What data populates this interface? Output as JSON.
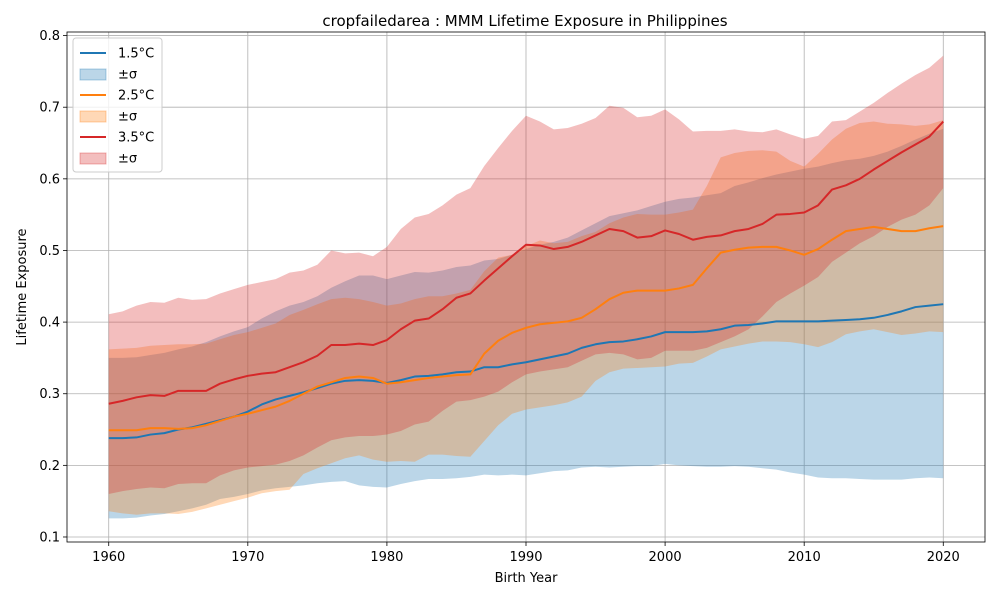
{
  "chart_data": {
    "type": "line",
    "title": "cropfailedarea : MMM Lifetime Exposure in Philippines",
    "xlabel": "Birth Year",
    "ylabel": "Lifetime Exposure",
    "xlim": [
      1957,
      2023
    ],
    "ylim": [
      0.093,
      0.805
    ],
    "xticks": [
      1960,
      1970,
      1980,
      1990,
      2000,
      2010,
      2020
    ],
    "xtick_labels": [
      "1960",
      "1970",
      "1980",
      "1990",
      "2000",
      "2010",
      "2020"
    ],
    "yticks": [
      0.1,
      0.2,
      0.3,
      0.4,
      0.5,
      0.6,
      0.7,
      0.8
    ],
    "ytick_labels": [
      "0.1",
      "0.2",
      "0.3",
      "0.4",
      "0.5",
      "0.6",
      "0.7",
      "0.8"
    ],
    "grid": true,
    "legend_position": "top-left",
    "x": [
      1960,
      1961,
      1962,
      1963,
      1964,
      1965,
      1966,
      1967,
      1968,
      1969,
      1970,
      1971,
      1972,
      1973,
      1974,
      1975,
      1976,
      1977,
      1978,
      1979,
      1980,
      1981,
      1982,
      1983,
      1984,
      1985,
      1986,
      1987,
      1988,
      1989,
      1990,
      1991,
      1992,
      1993,
      1994,
      1995,
      1996,
      1997,
      1998,
      1999,
      2000,
      2001,
      2002,
      2003,
      2004,
      2005,
      2006,
      2007,
      2008,
      2009,
      2010,
      2011,
      2012,
      2013,
      2014,
      2015,
      2016,
      2017,
      2018,
      2019,
      2020
    ],
    "series": [
      {
        "name": "1.5°C",
        "band_label": "±σ",
        "color": "#1f77b4",
        "band_color": "#1f77b4",
        "band_opacity": 0.3,
        "values": [
          0.238,
          0.238,
          0.239,
          0.243,
          0.245,
          0.25,
          0.253,
          0.258,
          0.263,
          0.268,
          0.275,
          0.285,
          0.292,
          0.297,
          0.302,
          0.308,
          0.314,
          0.318,
          0.319,
          0.318,
          0.315,
          0.319,
          0.324,
          0.325,
          0.327,
          0.33,
          0.331,
          0.337,
          0.337,
          0.341,
          0.344,
          0.348,
          0.352,
          0.356,
          0.364,
          0.369,
          0.372,
          0.373,
          0.376,
          0.38,
          0.386,
          0.386,
          0.386,
          0.387,
          0.39,
          0.395,
          0.396,
          0.398,
          0.401,
          0.401,
          0.401,
          0.401,
          0.402,
          0.403,
          0.404,
          0.406,
          0.41,
          0.415,
          0.421,
          0.423,
          0.425
        ],
        "lower": [
          0.126,
          0.126,
          0.127,
          0.13,
          0.132,
          0.136,
          0.14,
          0.145,
          0.153,
          0.156,
          0.16,
          0.165,
          0.168,
          0.17,
          0.172,
          0.175,
          0.177,
          0.178,
          0.172,
          0.17,
          0.169,
          0.174,
          0.178,
          0.181,
          0.181,
          0.182,
          0.184,
          0.187,
          0.186,
          0.187,
          0.186,
          0.189,
          0.192,
          0.193,
          0.197,
          0.198,
          0.197,
          0.198,
          0.199,
          0.199,
          0.202,
          0.2,
          0.199,
          0.198,
          0.198,
          0.199,
          0.198,
          0.196,
          0.194,
          0.19,
          0.187,
          0.183,
          0.182,
          0.182,
          0.181,
          0.18,
          0.18,
          0.18,
          0.182,
          0.183,
          0.182
        ],
        "upper": [
          0.35,
          0.35,
          0.351,
          0.354,
          0.357,
          0.362,
          0.366,
          0.372,
          0.38,
          0.387,
          0.393,
          0.405,
          0.415,
          0.423,
          0.428,
          0.436,
          0.448,
          0.457,
          0.465,
          0.465,
          0.46,
          0.465,
          0.47,
          0.469,
          0.472,
          0.477,
          0.479,
          0.486,
          0.488,
          0.494,
          0.502,
          0.508,
          0.512,
          0.518,
          0.528,
          0.538,
          0.548,
          0.552,
          0.556,
          0.562,
          0.568,
          0.572,
          0.574,
          0.577,
          0.58,
          0.59,
          0.595,
          0.601,
          0.606,
          0.61,
          0.614,
          0.617,
          0.622,
          0.626,
          0.628,
          0.632,
          0.638,
          0.646,
          0.655,
          0.663,
          0.67
        ]
      },
      {
        "name": "2.5°C",
        "band_label": "±σ",
        "color": "#ff7f0e",
        "band_color": "#ff7f0e",
        "band_opacity": 0.3,
        "values": [
          0.249,
          0.249,
          0.249,
          0.252,
          0.252,
          0.251,
          0.252,
          0.256,
          0.262,
          0.268,
          0.272,
          0.277,
          0.282,
          0.29,
          0.3,
          0.31,
          0.316,
          0.322,
          0.324,
          0.322,
          0.314,
          0.316,
          0.319,
          0.322,
          0.324,
          0.326,
          0.327,
          0.356,
          0.374,
          0.385,
          0.392,
          0.397,
          0.399,
          0.401,
          0.406,
          0.418,
          0.432,
          0.441,
          0.444,
          0.444,
          0.444,
          0.447,
          0.452,
          0.475,
          0.497,
          0.501,
          0.504,
          0.505,
          0.505,
          0.5,
          0.494,
          0.502,
          0.515,
          0.527,
          0.53,
          0.533,
          0.53,
          0.527,
          0.527,
          0.531,
          0.534
        ],
        "lower": [
          0.136,
          0.133,
          0.131,
          0.133,
          0.133,
          0.132,
          0.135,
          0.14,
          0.145,
          0.15,
          0.155,
          0.161,
          0.164,
          0.166,
          0.188,
          0.196,
          0.203,
          0.21,
          0.214,
          0.208,
          0.205,
          0.206,
          0.205,
          0.215,
          0.215,
          0.213,
          0.212,
          0.234,
          0.256,
          0.272,
          0.278,
          0.281,
          0.284,
          0.288,
          0.296,
          0.318,
          0.33,
          0.335,
          0.336,
          0.337,
          0.338,
          0.342,
          0.343,
          0.352,
          0.362,
          0.366,
          0.37,
          0.373,
          0.373,
          0.372,
          0.369,
          0.365,
          0.372,
          0.383,
          0.387,
          0.39,
          0.386,
          0.382,
          0.384,
          0.387,
          0.386
        ],
        "upper": [
          0.362,
          0.363,
          0.364,
          0.367,
          0.368,
          0.369,
          0.369,
          0.37,
          0.376,
          0.382,
          0.386,
          0.392,
          0.398,
          0.41,
          0.417,
          0.425,
          0.432,
          0.434,
          0.432,
          0.428,
          0.423,
          0.426,
          0.432,
          0.436,
          0.436,
          0.44,
          0.445,
          0.471,
          0.49,
          0.494,
          0.506,
          0.514,
          0.51,
          0.512,
          0.52,
          0.526,
          0.538,
          0.546,
          0.551,
          0.55,
          0.55,
          0.553,
          0.557,
          0.59,
          0.63,
          0.636,
          0.639,
          0.64,
          0.638,
          0.625,
          0.617,
          0.635,
          0.655,
          0.67,
          0.678,
          0.68,
          0.677,
          0.676,
          0.674,
          0.676,
          0.682
        ]
      },
      {
        "name": "3.5°C",
        "band_label": "±σ",
        "color": "#d62728",
        "band_color": "#d62728",
        "band_opacity": 0.3,
        "values": [
          0.286,
          0.29,
          0.295,
          0.298,
          0.297,
          0.304,
          0.304,
          0.304,
          0.314,
          0.32,
          0.325,
          0.328,
          0.33,
          0.337,
          0.344,
          0.353,
          0.368,
          0.368,
          0.37,
          0.368,
          0.375,
          0.39,
          0.402,
          0.405,
          0.418,
          0.434,
          0.44,
          0.458,
          0.475,
          0.492,
          0.508,
          0.507,
          0.502,
          0.505,
          0.512,
          0.521,
          0.53,
          0.527,
          0.518,
          0.52,
          0.528,
          0.523,
          0.515,
          0.519,
          0.521,
          0.527,
          0.53,
          0.537,
          0.55,
          0.551,
          0.553,
          0.563,
          0.585,
          0.591,
          0.6,
          0.613,
          0.625,
          0.637,
          0.648,
          0.659,
          0.68
        ],
        "lower": [
          0.16,
          0.164,
          0.167,
          0.169,
          0.168,
          0.174,
          0.175,
          0.175,
          0.186,
          0.193,
          0.197,
          0.199,
          0.201,
          0.206,
          0.214,
          0.225,
          0.235,
          0.239,
          0.241,
          0.241,
          0.243,
          0.248,
          0.257,
          0.261,
          0.276,
          0.289,
          0.291,
          0.296,
          0.303,
          0.316,
          0.327,
          0.331,
          0.334,
          0.337,
          0.346,
          0.355,
          0.357,
          0.355,
          0.348,
          0.35,
          0.36,
          0.36,
          0.36,
          0.364,
          0.372,
          0.38,
          0.39,
          0.408,
          0.428,
          0.44,
          0.451,
          0.463,
          0.484,
          0.497,
          0.51,
          0.52,
          0.533,
          0.543,
          0.55,
          0.563,
          0.587
        ],
        "upper": [
          0.411,
          0.415,
          0.423,
          0.428,
          0.427,
          0.434,
          0.431,
          0.432,
          0.44,
          0.446,
          0.452,
          0.456,
          0.46,
          0.469,
          0.472,
          0.48,
          0.5,
          0.496,
          0.497,
          0.492,
          0.505,
          0.53,
          0.546,
          0.551,
          0.563,
          0.578,
          0.587,
          0.618,
          0.643,
          0.667,
          0.688,
          0.68,
          0.669,
          0.671,
          0.677,
          0.685,
          0.702,
          0.699,
          0.686,
          0.688,
          0.697,
          0.683,
          0.666,
          0.667,
          0.667,
          0.669,
          0.666,
          0.665,
          0.669,
          0.662,
          0.656,
          0.66,
          0.68,
          0.682,
          0.694,
          0.706,
          0.72,
          0.733,
          0.745,
          0.755,
          0.772
        ]
      }
    ]
  }
}
